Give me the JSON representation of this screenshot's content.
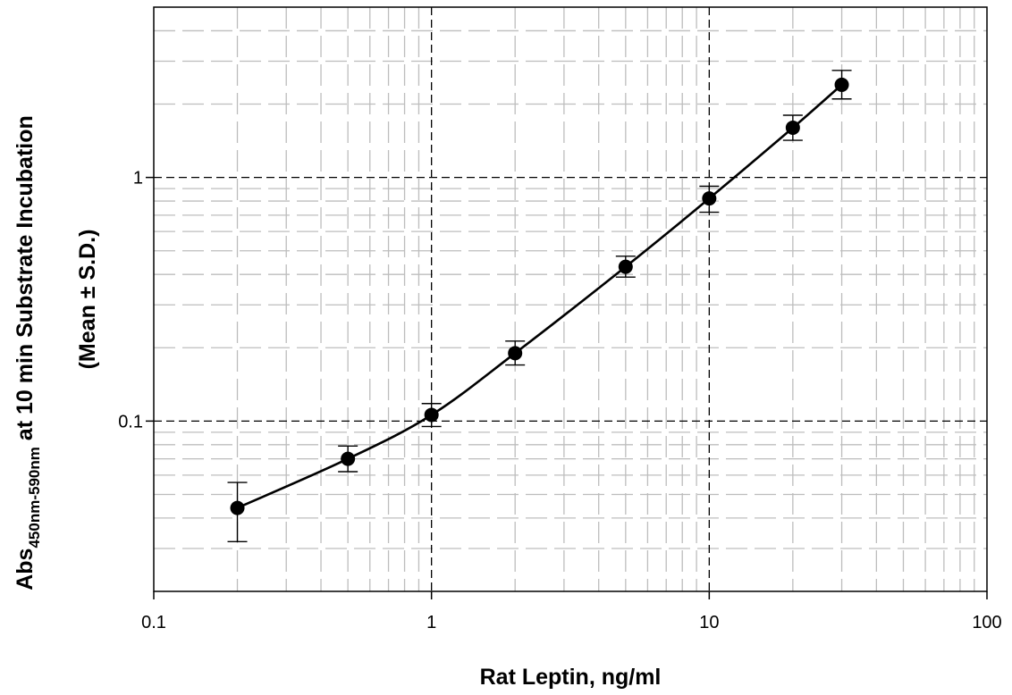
{
  "chart_data": {
    "type": "scatter",
    "x_scale": "log",
    "y_scale": "log",
    "xlim": [
      0.1,
      100
    ],
    "ylim": [
      0.02,
      5
    ],
    "x_ticks": [
      "0.1",
      "1",
      "10",
      "100"
    ],
    "y_ticks": [
      "0.1",
      "1"
    ],
    "xlabel": "Rat Leptin, ng/ml",
    "ylabel": {
      "prefix": "Abs",
      "subscript": "450nm-590nm",
      "suffix": " at 10 min Substrate Incubation",
      "line2": "(Mean ± S.D.)"
    },
    "grid": true,
    "legend": "none",
    "line_color": "#000000",
    "series": [
      {
        "x": [
          0.2,
          0.5,
          1,
          2,
          5,
          10,
          20,
          30
        ],
        "y": [
          0.044,
          0.07,
          0.106,
          0.19,
          0.43,
          0.82,
          1.6,
          2.4
        ],
        "error_low": [
          0.032,
          0.062,
          0.095,
          0.17,
          0.39,
          0.72,
          1.42,
          2.1
        ],
        "error_high": [
          0.056,
          0.079,
          0.118,
          0.213,
          0.475,
          0.92,
          1.8,
          2.75
        ]
      }
    ]
  }
}
